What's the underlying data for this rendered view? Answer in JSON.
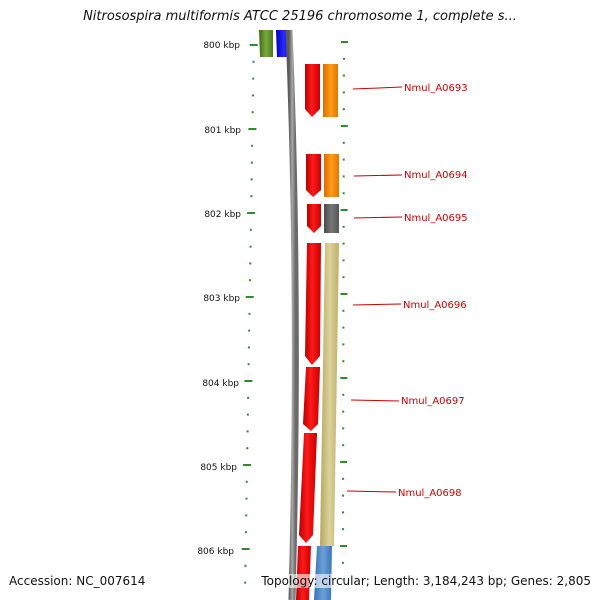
{
  "title": "Nitrosospira multiformis ATCC 25196 chromosome 1, complete s...",
  "accession": "Accession: NC_007614",
  "topology": "Topology: circular; Length: 3,184,243 bp; Genes: 2,805",
  "scale_labels": [
    "800 kbp",
    "801 kbp",
    "802 kbp",
    "803 kbp",
    "804 kbp",
    "805 kbp",
    "806 kbp"
  ],
  "genes": [
    {
      "locus": "Nmul_A0693",
      "strand_color": "#ff0000",
      "category_color": "#ff8c00"
    },
    {
      "locus": "Nmul_A0694",
      "strand_color": "#ff0000",
      "category_color": "#ff8c00"
    },
    {
      "locus": "Nmul_A0695",
      "strand_color": "#ff0000",
      "category_color": "#666666"
    },
    {
      "locus": "Nmul_A0696",
      "strand_color": "#ff0000",
      "category_color": "#c8bc78"
    },
    {
      "locus": "Nmul_A0697",
      "strand_color": "#ff0000",
      "category_color": "#c8bc78"
    },
    {
      "locus": "Nmul_A0698",
      "strand_color": "#ff0000",
      "category_color": "#c8bc78"
    }
  ],
  "colors": {
    "backbone": "#808080",
    "tick": "#2e8b2e",
    "gene_label": "#cc0000",
    "top_green": "#5a8a28",
    "top_blue": "#0000ff",
    "bottom_blue": "#4a86c8"
  }
}
